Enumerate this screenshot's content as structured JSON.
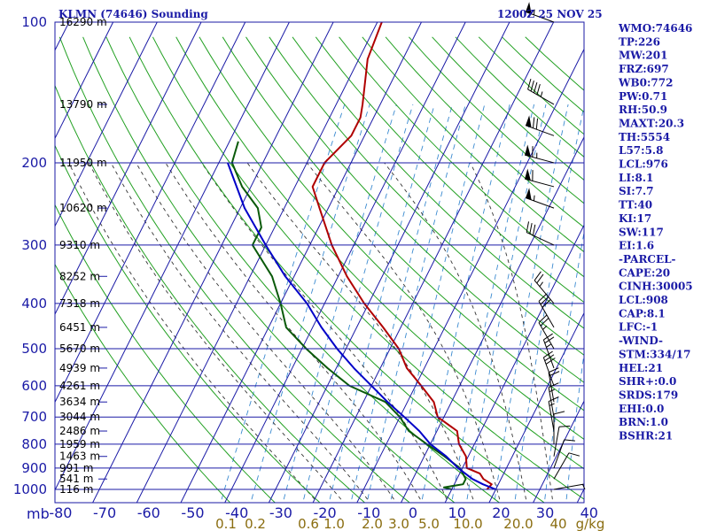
{
  "header": {
    "station": "KLMN (74646) Sounding",
    "valid_time": "1200Z 25 NOV 25"
  },
  "colors": {
    "isobar": "#1a1aa6",
    "isotherm": "#1a1aa6",
    "dry_adiabat": "#22a022",
    "moist_adiabat": "#333333",
    "mixing_ratio": "#3a8ad0",
    "temperature": "#b00000",
    "dewpoint": "#0a5a0a",
    "parcel": "#0000c8",
    "wind_barb": "#000000"
  },
  "chart_data": {
    "type": "skew-t",
    "title": "KLMN (74646) Sounding",
    "subtitle": "1200Z 25 NOV 25",
    "xlabel": "",
    "ylabel": "mb",
    "pressure_levels": [
      100,
      200,
      300,
      400,
      500,
      600,
      700,
      800,
      900,
      1000
    ],
    "pressure_labels": [
      "100",
      "200",
      "300",
      "400",
      "500",
      "600",
      "700",
      "800",
      "900",
      "1000"
    ],
    "ylim": [
      1050,
      100
    ],
    "x_ticks": [
      -80,
      -70,
      -60,
      -50,
      -40,
      -30,
      -20,
      -10,
      0,
      10,
      20,
      30,
      40
    ],
    "x_tick_labels": [
      "-80",
      "-70",
      "-60",
      "-50",
      "-40",
      "-30",
      "-20",
      "-10",
      "0",
      "10",
      "20",
      "30",
      "40"
    ],
    "xlim": [
      -80,
      40
    ],
    "mixing_ratio_labels": [
      "0.1",
      "0.2",
      "0.6",
      "1.0",
      "2.0",
      "3.0",
      "5.0",
      "10.0",
      "20.0",
      "40",
      "g/kg"
    ],
    "heights": [
      {
        "p": 100,
        "label": "16290 m"
      },
      {
        "p": 150,
        "label": "13790 m"
      },
      {
        "p": 200,
        "label": "11950 m"
      },
      {
        "p": 250,
        "label": "10620 m"
      },
      {
        "p": 300,
        "label": "9310 m"
      },
      {
        "p": 350,
        "label": "8252 m"
      },
      {
        "p": 400,
        "label": "7318 m"
      },
      {
        "p": 450,
        "label": "6451 m"
      },
      {
        "p": 500,
        "label": "5670 m"
      },
      {
        "p": 550,
        "label": "4939 m"
      },
      {
        "p": 600,
        "label": "4261 m"
      },
      {
        "p": 650,
        "label": "3634 m"
      },
      {
        "p": 700,
        "label": "3044 m"
      },
      {
        "p": 750,
        "label": "2486 m"
      },
      {
        "p": 800,
        "label": "1959 m"
      },
      {
        "p": 850,
        "label": "1463 m"
      },
      {
        "p": 900,
        "label": "991 m"
      },
      {
        "p": 950,
        "label": "541 m"
      },
      {
        "p": 1000,
        "label": "116 m"
      }
    ],
    "series": [
      {
        "name": "temperature",
        "points": [
          [
            1000,
            18
          ],
          [
            975,
            18.5
          ],
          [
            950,
            16
          ],
          [
            925,
            14.6
          ],
          [
            900,
            11
          ],
          [
            850,
            9.5
          ],
          [
            800,
            6.5
          ],
          [
            750,
            4.6
          ],
          [
            700,
            -1.4
          ],
          [
            650,
            -4
          ],
          [
            600,
            -8.7
          ],
          [
            550,
            -14
          ],
          [
            500,
            -18
          ],
          [
            450,
            -24
          ],
          [
            400,
            -31
          ],
          [
            350,
            -38
          ],
          [
            300,
            -45
          ],
          [
            250,
            -52
          ],
          [
            225,
            -56
          ],
          [
            200,
            -56
          ],
          [
            175,
            -53
          ],
          [
            160,
            -53
          ],
          [
            150,
            -54
          ],
          [
            120,
            -58
          ],
          [
            100,
            -59
          ]
        ]
      },
      {
        "name": "dewpoint",
        "points": [
          [
            1000,
            10
          ],
          [
            990,
            8
          ],
          [
            975,
            12
          ],
          [
            950,
            12
          ],
          [
            900,
            9.4
          ],
          [
            850,
            4.6
          ],
          [
            800,
            -0.8
          ],
          [
            750,
            -6.4
          ],
          [
            700,
            -10
          ],
          [
            650,
            -15
          ],
          [
            600,
            -25
          ],
          [
            550,
            -32
          ],
          [
            500,
            -39
          ],
          [
            450,
            -46
          ],
          [
            400,
            -50
          ],
          [
            350,
            -55
          ],
          [
            300,
            -63
          ],
          [
            275,
            -63
          ],
          [
            250,
            -66
          ],
          [
            225,
            -72
          ],
          [
            200,
            -77
          ],
          [
            180,
            -78
          ]
        ]
      },
      {
        "name": "parcel",
        "points": [
          [
            1000,
            20
          ],
          [
            975,
            16.5
          ],
          [
            950,
            13.5
          ],
          [
            900,
            9
          ],
          [
            850,
            5
          ],
          [
            800,
            0
          ],
          [
            750,
            -4
          ],
          [
            700,
            -9
          ],
          [
            650,
            -14.5
          ],
          [
            600,
            -20
          ],
          [
            550,
            -26
          ],
          [
            500,
            -32
          ],
          [
            450,
            -38
          ],
          [
            400,
            -44
          ],
          [
            350,
            -52
          ],
          [
            300,
            -60
          ],
          [
            250,
            -69
          ],
          [
            200,
            -78
          ]
        ]
      }
    ],
    "wind_barbs": [
      {
        "p": 100,
        "dir": 290,
        "spd": 55
      },
      {
        "p": 150,
        "dir": 300,
        "spd": 45
      },
      {
        "p": 175,
        "dir": 290,
        "spd": 70
      },
      {
        "p": 200,
        "dir": 285,
        "spd": 65
      },
      {
        "p": 225,
        "dir": 285,
        "spd": 60
      },
      {
        "p": 250,
        "dir": 290,
        "spd": 55
      },
      {
        "p": 300,
        "dir": 295,
        "spd": 30
      },
      {
        "p": 400,
        "dir": 320,
        "spd": 25
      },
      {
        "p": 450,
        "dir": 330,
        "spd": 30
      },
      {
        "p": 500,
        "dir": 330,
        "spd": 25
      },
      {
        "p": 550,
        "dir": 340,
        "spd": 25
      },
      {
        "p": 600,
        "dir": 340,
        "spd": 30
      },
      {
        "p": 650,
        "dir": 350,
        "spd": 20
      },
      {
        "p": 700,
        "dir": 350,
        "spd": 15
      },
      {
        "p": 750,
        "dir": 350,
        "spd": 15
      },
      {
        "p": 800,
        "dir": 360,
        "spd": 10
      },
      {
        "p": 850,
        "dir": 10,
        "spd": 10
      },
      {
        "p": 900,
        "dir": 20,
        "spd": 10
      },
      {
        "p": 950,
        "dir": 30,
        "spd": 10
      },
      {
        "p": 1000,
        "dir": 80,
        "spd": 5
      }
    ]
  },
  "indices": [
    "WMO:74646",
    "TP:226",
    "MW:201",
    "FRZ:697",
    "WB0:772",
    "PW:0.71",
    "RH:50.9",
    "MAXT:20.3",
    "TH:5554",
    "L57:5.8",
    "LCL:976",
    "LI:8.1",
    "SI:7.7",
    "TT:40",
    "KI:17",
    "SW:117",
    "EI:1.6",
    "-PARCEL-",
    "CAPE:20",
    "CINH:30005",
    "LCL:908",
    "CAP:8.1",
    "LFC:-1",
    "-WIND-",
    "STM:334/17",
    "HEL:21",
    "SHR+:0.0",
    "SRDS:179",
    "EHI:0.0",
    "BRN:1.0",
    "BSHR:21"
  ]
}
